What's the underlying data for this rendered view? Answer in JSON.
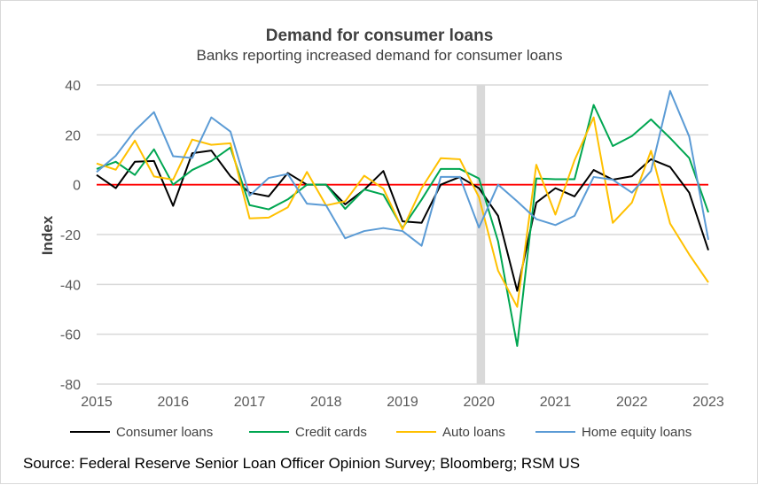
{
  "chart_data": {
    "type": "line",
    "title": "Demand for consumer loans",
    "subtitle": "Banks reporting increased demand for consumer loans",
    "xlabel": "",
    "ylabel": "Index",
    "xlim": [
      2015,
      2023
    ],
    "ylim": [
      -80,
      40
    ],
    "x_ticks": [
      "2015",
      "2016",
      "2017",
      "2018",
      "2019",
      "2020",
      "2021",
      "2022",
      "2023"
    ],
    "y_ticks": [
      40,
      20,
      0,
      -20,
      -40,
      -60,
      -80
    ],
    "grid": true,
    "zero_line_color": "#ff0000",
    "shaded_band": {
      "from": 2019.97,
      "to": 2020.08,
      "color": "#d9d9d9"
    },
    "x_frequency": "quarterly, 2015 Q1 to 2023 Q1",
    "legend_position": "bottom",
    "series": [
      {
        "name": "Consumer loans",
        "color": "#000000",
        "values": [
          3.9,
          -1.4,
          9.2,
          9.5,
          -8.5,
          12.6,
          13.7,
          3.4,
          -3.2,
          -4.7,
          4.7,
          0,
          0,
          -7.9,
          -2,
          5.5,
          -14.7,
          -15.3,
          0,
          3.1,
          -1.4,
          -12.5,
          -42.6,
          -7.2,
          -1.4,
          -4.7,
          5.9,
          2,
          3.4,
          10.2,
          7.1,
          -3.2,
          -26.3
        ]
      },
      {
        "name": "Credit cards",
        "color": "#00a651",
        "values": [
          6.3,
          9.2,
          3.9,
          14.2,
          0,
          5.9,
          9.5,
          14.9,
          -8.2,
          -9.9,
          -5.9,
          0,
          0,
          -9.7,
          -1.9,
          -4,
          -17.4,
          -6,
          6.3,
          6.3,
          2.5,
          -22.7,
          -64.7,
          2.5,
          2.2,
          2.2,
          32,
          15.5,
          19.5,
          26.2,
          18.7,
          10.7,
          -11.1
        ]
      },
      {
        "name": "Auto loans",
        "color": "#ffc000",
        "values": [
          8.5,
          6,
          17.7,
          3.3,
          2,
          18.1,
          16,
          16.6,
          -13.5,
          -13.2,
          -9.1,
          5.1,
          -8.3,
          -6.7,
          3.6,
          -1.6,
          -17.9,
          -1.4,
          10.6,
          10.2,
          -5,
          -34.5,
          -49,
          8,
          -12,
          9.8,
          27,
          -15.3,
          -7.2,
          13.6,
          -15.6,
          -28,
          -39.2
        ]
      },
      {
        "name": "Home equity loans",
        "color": "#5b9bd5",
        "values": [
          5.1,
          11.6,
          21.7,
          29.1,
          11.4,
          10.7,
          27,
          21.3,
          -4.4,
          2.7,
          4.3,
          -7.6,
          -8.3,
          -21.5,
          -18.6,
          -17.4,
          -18.6,
          -24.5,
          3.1,
          3.1,
          -17.2,
          0,
          -6.7,
          -13.8,
          -16.2,
          -12.5,
          3.1,
          2,
          -3.2,
          5.5,
          37.6,
          19.3,
          -22.1
        ]
      }
    ],
    "source": "Source: Federal Reserve Senior Loan Officer Opinion Survey; Bloomberg; RSM US"
  }
}
